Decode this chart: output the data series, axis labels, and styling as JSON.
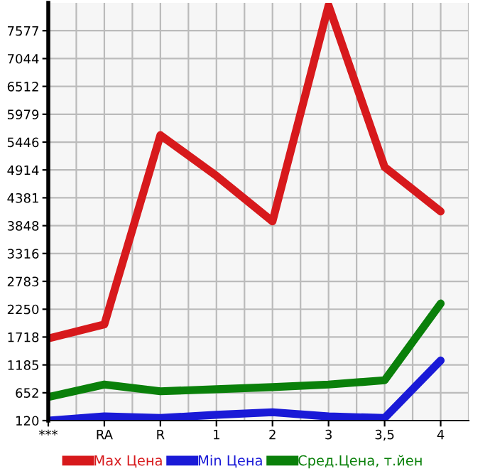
{
  "chart_data": {
    "type": "line",
    "categories": [
      "***",
      "RA",
      "R",
      "1",
      "2",
      "3",
      "3,5",
      "4"
    ],
    "series": [
      {
        "name": "Max Цена",
        "color": "#d7191c",
        "values": [
          1690,
          1960,
          5580,
          4800,
          3930,
          8060,
          4970,
          4120
        ]
      },
      {
        "name": "Min Цена",
        "color": "#1a1ad7",
        "values": [
          120,
          200,
          170,
          230,
          280,
          200,
          170,
          1270
        ]
      },
      {
        "name": "Сред.Цена, т.йен",
        "color": "#0a800a",
        "values": [
          570,
          810,
          680,
          720,
          760,
          810,
          890,
          2360
        ]
      }
    ],
    "ylim": [
      120,
      8110
    ],
    "yticks": [
      120,
      652,
      1185,
      1718,
      2250,
      2783,
      3316,
      3848,
      4381,
      4914,
      5446,
      5979,
      6512,
      7044,
      7577
    ],
    "grid": true,
    "legend": "bottom",
    "marker": "none",
    "line_style": "solid"
  }
}
